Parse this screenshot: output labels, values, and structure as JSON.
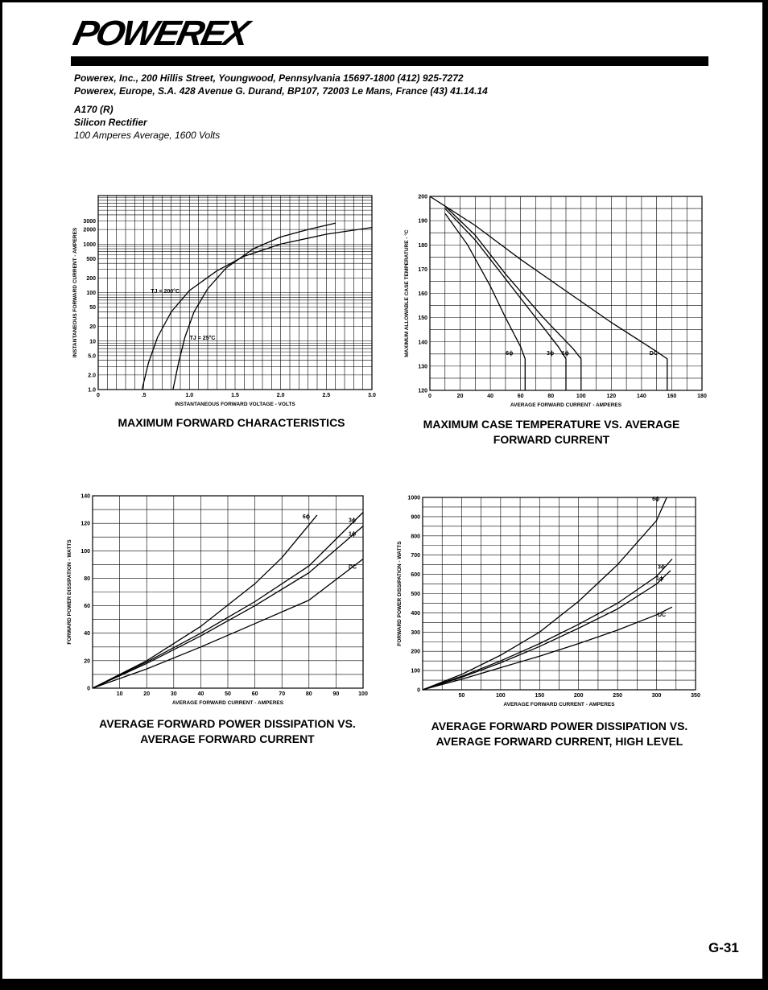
{
  "header": {
    "logo_text": "POWEREX",
    "address_us": "Powerex, Inc., 200 Hillis Street, Youngwood, Pennsylvania 15697-1800 (412) 925-7272",
    "address_eu": "Powerex, Europe, S.A. 428 Avenue G. Durand, BP107, 72003 Le Mans, France (43) 41.14.14"
  },
  "product": {
    "model": "A170 (R)",
    "type": "Silicon Rectifier",
    "rating": "100 Amperes Average, 1600 Volts"
  },
  "page_number": "G-31",
  "chart_data": [
    {
      "type": "line",
      "title": "MAXIMUM FORWARD CHARACTERISTICS",
      "xlabel": "INSTANTANEOUS FORWARD VOLTAGE - VOLTS",
      "ylabel": "INSTANTANEOUS FORWARD CURRENT - AMPERES",
      "y_scale": "log",
      "xlim": [
        0,
        3.0
      ],
      "ylim": [
        1.0,
        10000
      ],
      "x_ticks": [
        "0",
        ".5",
        "1.0",
        "1.5",
        "2.0",
        "2.5",
        "3.0"
      ],
      "y_ticks": [
        "1.0",
        "2.0",
        "5.0",
        "10",
        "20",
        "50",
        "100",
        "200",
        "500",
        "1000",
        "2000",
        "3000"
      ],
      "grid": true,
      "series": [
        {
          "name": "TJ = 200°C",
          "x": [
            0.48,
            0.55,
            0.65,
            0.8,
            1.0,
            1.3,
            1.6,
            2.0,
            2.5,
            3.0
          ],
          "y": [
            1.0,
            3.5,
            12,
            40,
            110,
            280,
            560,
            1000,
            1600,
            2200
          ]
        },
        {
          "name": "TJ = 25°C",
          "x": [
            0.82,
            0.88,
            0.95,
            1.05,
            1.2,
            1.4,
            1.7,
            2.0,
            2.3,
            2.6
          ],
          "y": [
            1.0,
            3.5,
            12,
            40,
            120,
            320,
            800,
            1400,
            2000,
            2700
          ]
        }
      ]
    },
    {
      "type": "line",
      "title": "MAXIMUM CASE TEMPERATURE VS. AVERAGE FORWARD CURRENT",
      "xlabel": "AVERAGE FORWARD CURRENT - AMPERES",
      "ylabel": "MAXIMUM ALLOWABLE CASE TEMPERATURE - °C",
      "xlim": [
        0,
        180
      ],
      "ylim": [
        120,
        200
      ],
      "x_ticks": [
        "0",
        "20",
        "40",
        "60",
        "80",
        "100",
        "120",
        "140",
        "160",
        "180"
      ],
      "y_ticks": [
        "120",
        "130",
        "140",
        "150",
        "160",
        "170",
        "180",
        "190",
        "200"
      ],
      "grid": true,
      "series": [
        {
          "name": "6ϕ",
          "x": [
            10,
            25,
            40,
            50,
            60,
            63,
            63
          ],
          "y": [
            193,
            180,
            163,
            150,
            138,
            133,
            120
          ]
        },
        {
          "name": "3ϕ",
          "x": [
            10,
            30,
            50,
            70,
            85,
            90,
            90
          ],
          "y": [
            195,
            182,
            166,
            150,
            138,
            133,
            120
          ]
        },
        {
          "name": "1ϕ",
          "x": [
            10,
            30,
            50,
            75,
            95,
            100,
            100
          ],
          "y": [
            196,
            184,
            168,
            150,
            137,
            133,
            120
          ]
        },
        {
          "name": "DC",
          "x": [
            0,
            30,
            60,
            90,
            120,
            150,
            157,
            157
          ],
          "y": [
            200,
            188,
            174,
            161,
            148,
            136,
            133,
            120
          ]
        }
      ]
    },
    {
      "type": "line",
      "title": "AVERAGE FORWARD POWER DISSIPATION VS. AVERAGE FORWARD CURRENT",
      "xlabel": "AVERAGE FORWARD CURRENT - AMPERES",
      "ylabel": "FORWARD POWER DISSIPATION - WATTS",
      "xlim": [
        0,
        100
      ],
      "ylim": [
        0,
        140
      ],
      "x_ticks": [
        "10",
        "20",
        "30",
        "40",
        "50",
        "60",
        "70",
        "80",
        "90",
        "100"
      ],
      "y_ticks": [
        "0",
        "20",
        "40",
        "60",
        "80",
        "100",
        "120",
        "140"
      ],
      "grid": true,
      "series": [
        {
          "name": "6ϕ",
          "x": [
            0,
            20,
            40,
            60,
            70,
            83
          ],
          "y": [
            0,
            20,
            45,
            76,
            95,
            126
          ]
        },
        {
          "name": "3ϕ",
          "x": [
            0,
            20,
            40,
            60,
            80,
            100
          ],
          "y": [
            0,
            19,
            40,
            63,
            89,
            128
          ]
        },
        {
          "name": "1ϕ",
          "x": [
            0,
            20,
            40,
            60,
            80,
            100
          ],
          "y": [
            0,
            18,
            38,
            60,
            84,
            118
          ]
        },
        {
          "name": "DC",
          "x": [
            0,
            20,
            40,
            60,
            80,
            100
          ],
          "y": [
            0,
            14,
            30,
            47,
            64,
            94
          ]
        }
      ]
    },
    {
      "type": "line",
      "title": "AVERAGE FORWARD POWER DISSIPATION VS. AVERAGE FORWARD CURRENT, HIGH LEVEL",
      "xlabel": "AVERAGE FORWARD CURRENT - AMPERES",
      "ylabel": "FORWARD POWER DISSIPATION - WATTS",
      "xlim": [
        0,
        350
      ],
      "ylim": [
        0,
        1000
      ],
      "x_ticks": [
        "50",
        "100",
        "150",
        "200",
        "250",
        "300",
        "350"
      ],
      "y_ticks": [
        "0",
        "100",
        "200",
        "300",
        "400",
        "500",
        "600",
        "700",
        "800",
        "900",
        "1000"
      ],
      "grid": true,
      "series": [
        {
          "name": "6ϕ",
          "x": [
            0,
            50,
            100,
            150,
            200,
            250,
            300,
            313
          ],
          "y": [
            0,
            80,
            180,
            300,
            460,
            650,
            880,
            1000
          ]
        },
        {
          "name": "3ϕ",
          "x": [
            0,
            50,
            100,
            150,
            200,
            250,
            300,
            320
          ],
          "y": [
            0,
            70,
            150,
            240,
            340,
            450,
            590,
            680
          ]
        },
        {
          "name": "1ϕ",
          "x": [
            0,
            50,
            100,
            150,
            200,
            250,
            300,
            318
          ],
          "y": [
            0,
            65,
            140,
            225,
            320,
            420,
            550,
            620
          ]
        },
        {
          "name": "DC",
          "x": [
            0,
            50,
            100,
            150,
            200,
            250,
            300,
            320
          ],
          "y": [
            0,
            55,
            115,
            175,
            240,
            310,
            390,
            430
          ]
        }
      ]
    }
  ]
}
